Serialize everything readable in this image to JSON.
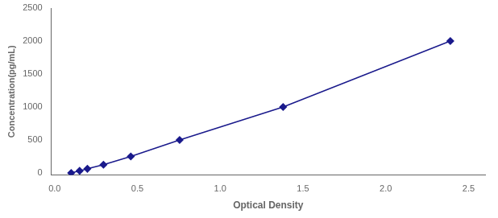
{
  "chart_data": {
    "type": "line",
    "x": [
      0.1,
      0.151,
      0.198,
      0.295,
      0.46,
      0.755,
      1.38,
      2.39
    ],
    "values": [
      0,
      31.25,
      62.5,
      125,
      250,
      500,
      1000,
      2000
    ],
    "color": "#1a1a8c",
    "marker": "diamond",
    "xlabel": "Optical Density",
    "ylabel": "Concentration(pg/mL)",
    "xlim": [
      -0.02,
      2.6
    ],
    "ylim": [
      -30,
      2500
    ],
    "xticks": [
      {
        "value": 0,
        "label": "0.0"
      },
      {
        "value": 0.5,
        "label": "0.5"
      },
      {
        "value": 1,
        "label": "1.0"
      },
      {
        "value": 1.5,
        "label": "1.5"
      },
      {
        "value": 2,
        "label": "2.0"
      },
      {
        "value": 2.5,
        "label": "2.5"
      }
    ],
    "yticks": [
      0,
      500,
      1000,
      1500,
      2000,
      2500
    ],
    "grid": false
  }
}
